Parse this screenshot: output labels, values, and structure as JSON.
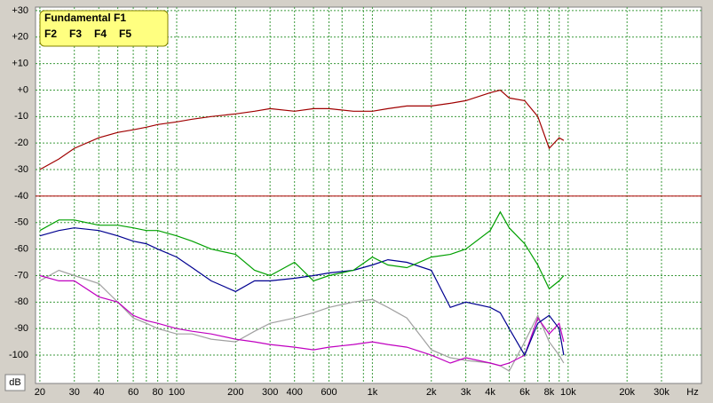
{
  "chart_data": {
    "type": "line",
    "x_log": true,
    "grid": true,
    "legend_position": "upper left",
    "y_unit": "dB",
    "x_unit": "Hz",
    "xlim": [
      19,
      48000
    ],
    "ylim": [
      -110.7,
      31.3
    ],
    "xticks": [
      20,
      30,
      40,
      60,
      80,
      100,
      200,
      300,
      400,
      600,
      {
        "value": 1000,
        "label": "1k"
      },
      {
        "value": 2000,
        "label": "2k"
      },
      {
        "value": 3000,
        "label": "3k"
      },
      {
        "value": 4000,
        "label": "4k"
      },
      {
        "value": 6000,
        "label": "6k"
      },
      {
        "value": 8000,
        "label": "8k"
      },
      {
        "value": 10000,
        "label": "10k"
      },
      {
        "value": 20000,
        "label": "20k"
      },
      {
        "value": 30000,
        "label": "30k"
      }
    ],
    "x_minor_ticks": [
      50,
      70,
      90,
      500,
      700,
      900,
      5000,
      7000,
      9000
    ],
    "yticks": [
      {
        "value": 30,
        "label": "+30"
      },
      {
        "value": 20,
        "label": "+20"
      },
      {
        "value": 10,
        "label": "+10"
      },
      {
        "value": 0,
        "label": "+0"
      },
      -10,
      -20,
      -30,
      -40,
      -50,
      -60,
      -70,
      -80,
      -90,
      -100
    ],
    "reference_line": -40,
    "reference_color": "#b00000",
    "x": [
      20,
      25,
      30,
      40,
      50,
      60,
      70,
      80,
      100,
      120,
      150,
      200,
      250,
      300,
      400,
      500,
      600,
      800,
      1000,
      1200,
      1500,
      2000,
      2500,
      3000,
      4000,
      4500,
      5000,
      6000,
      7000,
      8000,
      9000,
      9500
    ],
    "series": [
      {
        "name": "Fundamental F1",
        "color": "#a00000",
        "values": [
          -30,
          -26,
          -22,
          -18,
          -16,
          -15,
          -14,
          -13,
          -12,
          -11,
          -10,
          -9,
          -8,
          -7,
          -8,
          -7,
          -7,
          -8,
          -8,
          -7,
          -6,
          -6,
          -5,
          -4,
          -1,
          0,
          -3,
          -4,
          -10,
          -22,
          -18,
          -19
        ]
      },
      {
        "name": "F2",
        "color": "#00a000",
        "values": [
          -53,
          -49,
          -49,
          -51,
          -51,
          -52,
          -53,
          -53,
          -55,
          -57,
          -60,
          -62,
          -68,
          -70,
          -65,
          -72,
          -70,
          -68,
          -63,
          -66,
          -67,
          -63,
          -62,
          -60,
          -53,
          -46,
          -52,
          -58,
          -66,
          -75,
          -72,
          -70
        ]
      },
      {
        "name": "F3",
        "color": "#000090",
        "values": [
          -55,
          -53,
          -52,
          -53,
          -55,
          -57,
          -58,
          -60,
          -63,
          -67,
          -72,
          -76,
          -72,
          -72,
          -71,
          -70,
          -69,
          -68,
          -66,
          -64,
          -65,
          -68,
          -82,
          -80,
          -82,
          -84,
          -90,
          -100,
          -88,
          -85,
          -90,
          -100
        ]
      },
      {
        "name": "F4",
        "color": "#c000c0",
        "values": [
          -70,
          -72,
          -72,
          -78,
          -80,
          -85,
          -87,
          -88,
          -90,
          -91,
          -92,
          -94,
          -95,
          -96,
          -97,
          -98,
          -97,
          -96,
          -95,
          -96,
          -97,
          -100,
          -103,
          -101,
          -103,
          -104,
          -103,
          -100,
          -86,
          -92,
          -88,
          -95
        ]
      },
      {
        "name": "F5",
        "color": "#a0a0a0",
        "values": [
          -72,
          -68,
          -70,
          -73,
          -80,
          -86,
          -88,
          -90,
          -92,
          -92,
          -94,
          -95,
          -91,
          -88,
          -86,
          -84,
          -82,
          -80,
          -79,
          -82,
          -86,
          -98,
          -101,
          -102,
          -103,
          -104,
          -106,
          -95,
          -85,
          -95,
          -100,
          -103
        ]
      }
    ]
  }
}
